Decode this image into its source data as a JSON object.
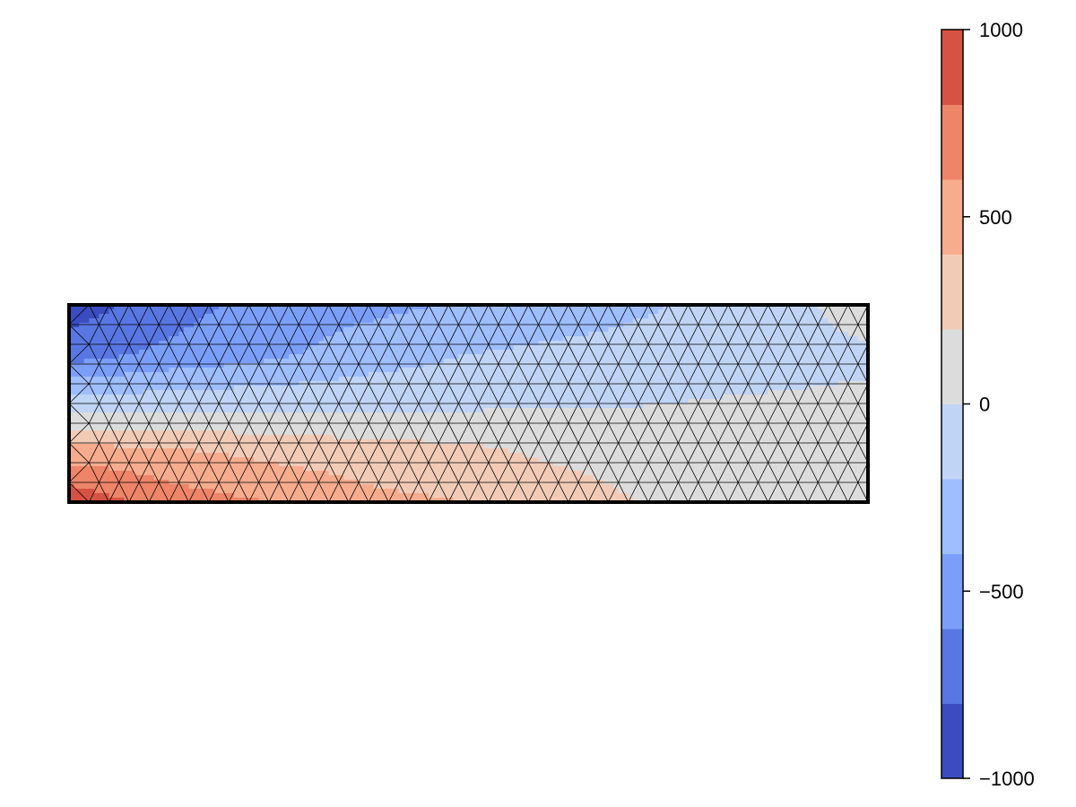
{
  "chart_data": {
    "type": "heatmap",
    "subtype": "filled-contour on triangular mesh",
    "title": "",
    "xlabel": "",
    "ylabel": "",
    "axes_visible": false,
    "grid": false,
    "mesh_overlay": true,
    "colormap": "coolwarm",
    "levels": [
      -1000,
      -800,
      -600,
      -400,
      -200,
      0,
      200,
      400,
      600,
      800,
      1000
    ],
    "level_colors": [
      "#3b4cc0",
      "#5977e3",
      "#7b9ff9",
      "#9ebeff",
      "#c0d4f5",
      "#dddcdc",
      "#f2cbb7",
      "#f7ac8e",
      "#ee8468",
      "#d65244",
      "#b40426"
    ],
    "colorbar": {
      "position": "right",
      "range": [
        -1000,
        1000
      ],
      "ticks": [
        1000,
        500,
        0,
        -500,
        -1000
      ],
      "tick_labels": [
        "1000",
        "500",
        "0",
        "−500",
        "−1000"
      ]
    },
    "domain": {
      "shape": "rectangle",
      "x_range": [
        0,
        8
      ],
      "y_range": [
        0,
        2
      ]
    },
    "field_samples": [
      {
        "y": 2.0,
        "x": [
          0,
          1,
          2,
          3,
          4,
          5,
          6,
          7,
          8
        ],
        "values": [
          -900,
          -700,
          -500,
          -450,
          -380,
          -300,
          -200,
          -150,
          150
        ]
      },
      {
        "y": 1.5,
        "x": [
          0,
          1,
          2,
          3,
          4,
          5,
          6,
          7,
          8
        ],
        "values": [
          -700,
          -550,
          -450,
          -300,
          -200,
          -150,
          -120,
          -100,
          -50
        ]
      },
      {
        "y": 1.0,
        "x": [
          0,
          1,
          2,
          3,
          4,
          5,
          6,
          7,
          8
        ],
        "values": [
          -100,
          -80,
          -60,
          -50,
          -40,
          -20,
          0,
          30,
          50
        ]
      },
      {
        "y": 0.5,
        "x": [
          0,
          1,
          2,
          3,
          4,
          5,
          6,
          7,
          8
        ],
        "values": [
          500,
          450,
          350,
          300,
          250,
          150,
          100,
          60,
          50
        ]
      },
      {
        "y": 0.0,
        "x": [
          0,
          1,
          2,
          3,
          4,
          5,
          6,
          7,
          8
        ],
        "values": [
          950,
          700,
          600,
          450,
          400,
          300,
          150,
          100,
          80
        ]
      }
    ]
  }
}
